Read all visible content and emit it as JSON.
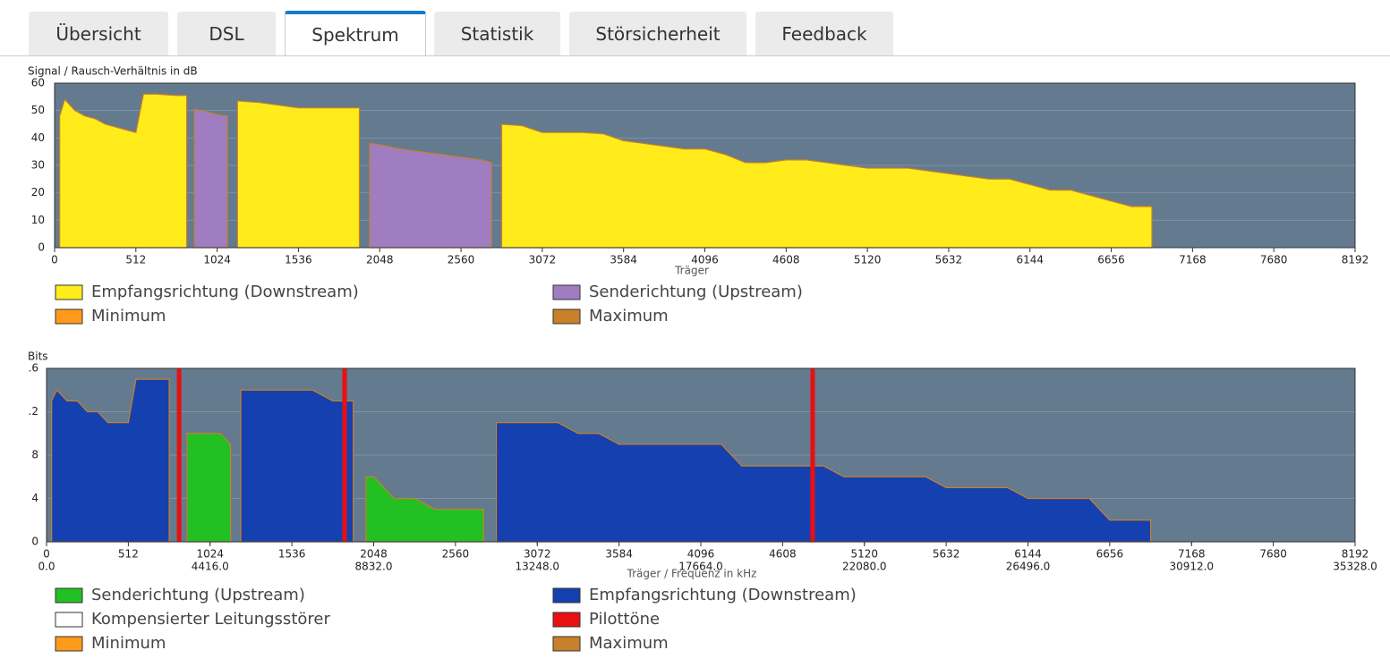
{
  "tabs": [
    {
      "label": "Übersicht",
      "active": false
    },
    {
      "label": "DSL",
      "active": false
    },
    {
      "label": "Spektrum",
      "active": true
    },
    {
      "label": "Statistik",
      "active": false
    },
    {
      "label": "Störsicherheit",
      "active": false
    },
    {
      "label": "Feedback",
      "active": false
    }
  ],
  "charts": [
    {
      "type": "area",
      "y_label": "Signal / Rausch-Verhältnis in dB",
      "x_label": "Träger",
      "xlim": [
        0,
        8192
      ],
      "xticks": [
        0,
        512,
        1024,
        1536,
        2048,
        2560,
        3072,
        3584,
        4096,
        4608,
        5120,
        5632,
        6144,
        6656,
        7168,
        7680,
        8192
      ],
      "ylim": [
        0,
        60
      ],
      "yticks": [
        0,
        10,
        20,
        30,
        40,
        50,
        60
      ],
      "grid": true,
      "x": [
        32,
        64,
        128,
        192,
        256,
        320,
        384,
        448,
        512,
        560,
        640,
        768,
        832,
        880,
        960,
        1024,
        1088,
        1152,
        1280,
        1408,
        1536,
        1664,
        1792,
        1920,
        1984,
        2048,
        2176,
        2304,
        2432,
        2560,
        2688,
        2752,
        2816,
        2944,
        3072,
        3200,
        3328,
        3456,
        3584,
        3712,
        3840,
        3968,
        4096,
        4224,
        4352,
        4480,
        4608,
        4736,
        4864,
        4992,
        5120,
        5248,
        5376,
        5504,
        5632,
        5760,
        5888,
        6016,
        6144,
        6272,
        6400,
        6528,
        6656,
        6784,
        6912
      ],
      "series": [
        {
          "name": "Empfangsrichtung (Downstream)",
          "color": "#ffec1a",
          "values": [
            48,
            54,
            50,
            48,
            47,
            45,
            44,
            43,
            42,
            56,
            56,
            55.5,
            55.5,
            null,
            null,
            null,
            null,
            53.5,
            53,
            52,
            51,
            51,
            51,
            51,
            null,
            null,
            null,
            null,
            null,
            null,
            null,
            null,
            45,
            44.5,
            42,
            42,
            42,
            41.5,
            39,
            38,
            37,
            36,
            36,
            34,
            31,
            31,
            32,
            32,
            31,
            30,
            29,
            29,
            29,
            28,
            27,
            26,
            25,
            25,
            23,
            21,
            21,
            19,
            17,
            15,
            15
          ]
        },
        {
          "name": "Senderichtung (Upstream)",
          "color": "#a07cc0",
          "values": [
            null,
            null,
            null,
            null,
            null,
            null,
            null,
            null,
            null,
            null,
            null,
            null,
            null,
            50.5,
            49.5,
            48.5,
            48,
            null,
            null,
            null,
            null,
            null,
            null,
            null,
            38,
            37.5,
            36,
            35,
            34,
            33,
            32,
            31,
            null,
            null,
            null,
            null,
            null,
            null,
            null,
            null,
            null,
            null,
            null,
            null,
            null,
            null,
            null,
            null,
            null,
            null,
            null,
            null,
            null,
            null,
            null,
            null,
            null,
            null,
            null,
            null,
            null,
            null,
            null,
            null,
            null
          ]
        },
        {
          "name": "Minimum",
          "color": "#ff9a1a"
        },
        {
          "name": "Maximum",
          "color": "#c8802a"
        }
      ]
    },
    {
      "type": "area",
      "y_label": "Bits",
      "x_label": "Träger / Frequenz in kHz",
      "xlim": [
        0,
        8192
      ],
      "xticks": [
        0,
        512,
        1024,
        1536,
        2048,
        2560,
        3072,
        3584,
        4096,
        4608,
        5120,
        5632,
        6144,
        6656,
        7168,
        7680,
        8192
      ],
      "x2lim": [
        0,
        35328
      ],
      "x2ticks": [
        {
          "value": 0,
          "label": "0.0"
        },
        {
          "value": 4416,
          "label": "4416.0"
        },
        {
          "value": 8832,
          "label": "8832.0"
        },
        {
          "value": 13248,
          "label": "13248.0"
        },
        {
          "value": 17664,
          "label": "17664.0"
        },
        {
          "value": 22080,
          "label": "22080.0"
        },
        {
          "value": 26496,
          "label": "26496.0"
        },
        {
          "value": 30912,
          "label": "30912.0"
        },
        {
          "value": 35328,
          "label": "35328.0"
        }
      ],
      "ylim": [
        0,
        16
      ],
      "yticks": [
        0,
        4,
        8,
        {
          "value": 12,
          "label": ".2"
        },
        {
          "value": 16,
          "label": ".6"
        }
      ],
      "grid": true,
      "x": [
        32,
        64,
        128,
        192,
        256,
        320,
        384,
        448,
        512,
        560,
        640,
        768,
        880,
        960,
        1024,
        1088,
        1152,
        1216,
        1280,
        1408,
        1536,
        1664,
        1792,
        1856,
        1920,
        2000,
        2048,
        2176,
        2304,
        2432,
        2560,
        2688,
        2736,
        2816,
        2944,
        3072,
        3200,
        3328,
        3456,
        3584,
        3712,
        3840,
        3968,
        4096,
        4224,
        4352,
        4480,
        4608,
        4736,
        4864,
        4992,
        5120,
        5248,
        5376,
        5504,
        5632,
        5760,
        5888,
        6016,
        6144,
        6272,
        6400,
        6528,
        6656,
        6784,
        6912
      ],
      "series": [
        {
          "name": "Senderichtung (Upstream)",
          "color": "#22c022",
          "values": [
            null,
            null,
            null,
            null,
            null,
            null,
            null,
            null,
            null,
            null,
            null,
            null,
            10,
            10,
            10,
            10,
            9,
            null,
            null,
            null,
            null,
            null,
            null,
            null,
            null,
            6,
            6,
            4,
            4,
            3,
            3,
            3,
            3,
            null,
            null,
            null,
            null,
            null,
            null,
            null,
            null,
            null,
            null,
            null,
            null,
            null,
            null,
            null,
            null,
            null,
            null,
            null,
            null,
            null,
            null,
            null,
            null,
            null,
            null,
            null,
            null,
            null,
            null,
            null,
            null,
            null
          ]
        },
        {
          "name": "Empfangsrichtung (Downstream)",
          "color": "#1540b0",
          "values": [
            13,
            14,
            13,
            13,
            12,
            12,
            11,
            11,
            11,
            15,
            15,
            15,
            null,
            null,
            null,
            null,
            null,
            14,
            14,
            14,
            14,
            14,
            13,
            13,
            13,
            null,
            null,
            null,
            null,
            null,
            null,
            null,
            null,
            11,
            11,
            11,
            11,
            10,
            10,
            9,
            9,
            9,
            9,
            9,
            9,
            7,
            7,
            7,
            7,
            7,
            6,
            6,
            6,
            6,
            6,
            5,
            5,
            5,
            5,
            4,
            4,
            4,
            4,
            2,
            2,
            2
          ]
        },
        {
          "name": "Kompensierter Leitungsstörer",
          "color": "#ffffff"
        },
        {
          "name": "Pilottöne",
          "color": "#e81010",
          "x": [
            830,
            1866,
            4796
          ]
        },
        {
          "name": "Minimum",
          "color": "#ff9a1a"
        },
        {
          "name": "Maximum",
          "color": "#c8802a"
        }
      ]
    }
  ]
}
